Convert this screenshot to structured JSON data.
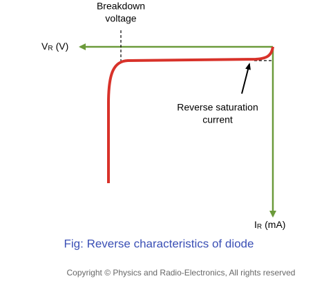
{
  "annotations": {
    "breakdown": [
      "Breakdown",
      "voltage"
    ],
    "saturation": [
      "Reverse saturation",
      "current"
    ]
  },
  "axes": {
    "x": {
      "symbol": "V",
      "subscript": "R",
      "unit": "(V)"
    },
    "y": {
      "symbol": "I",
      "subscript": "R",
      "unit": "(mA)"
    }
  },
  "caption": "Fig: Reverse characteristics of diode",
  "footer": "Copyright © Physics and Radio-Electronics, All rights reserved"
}
